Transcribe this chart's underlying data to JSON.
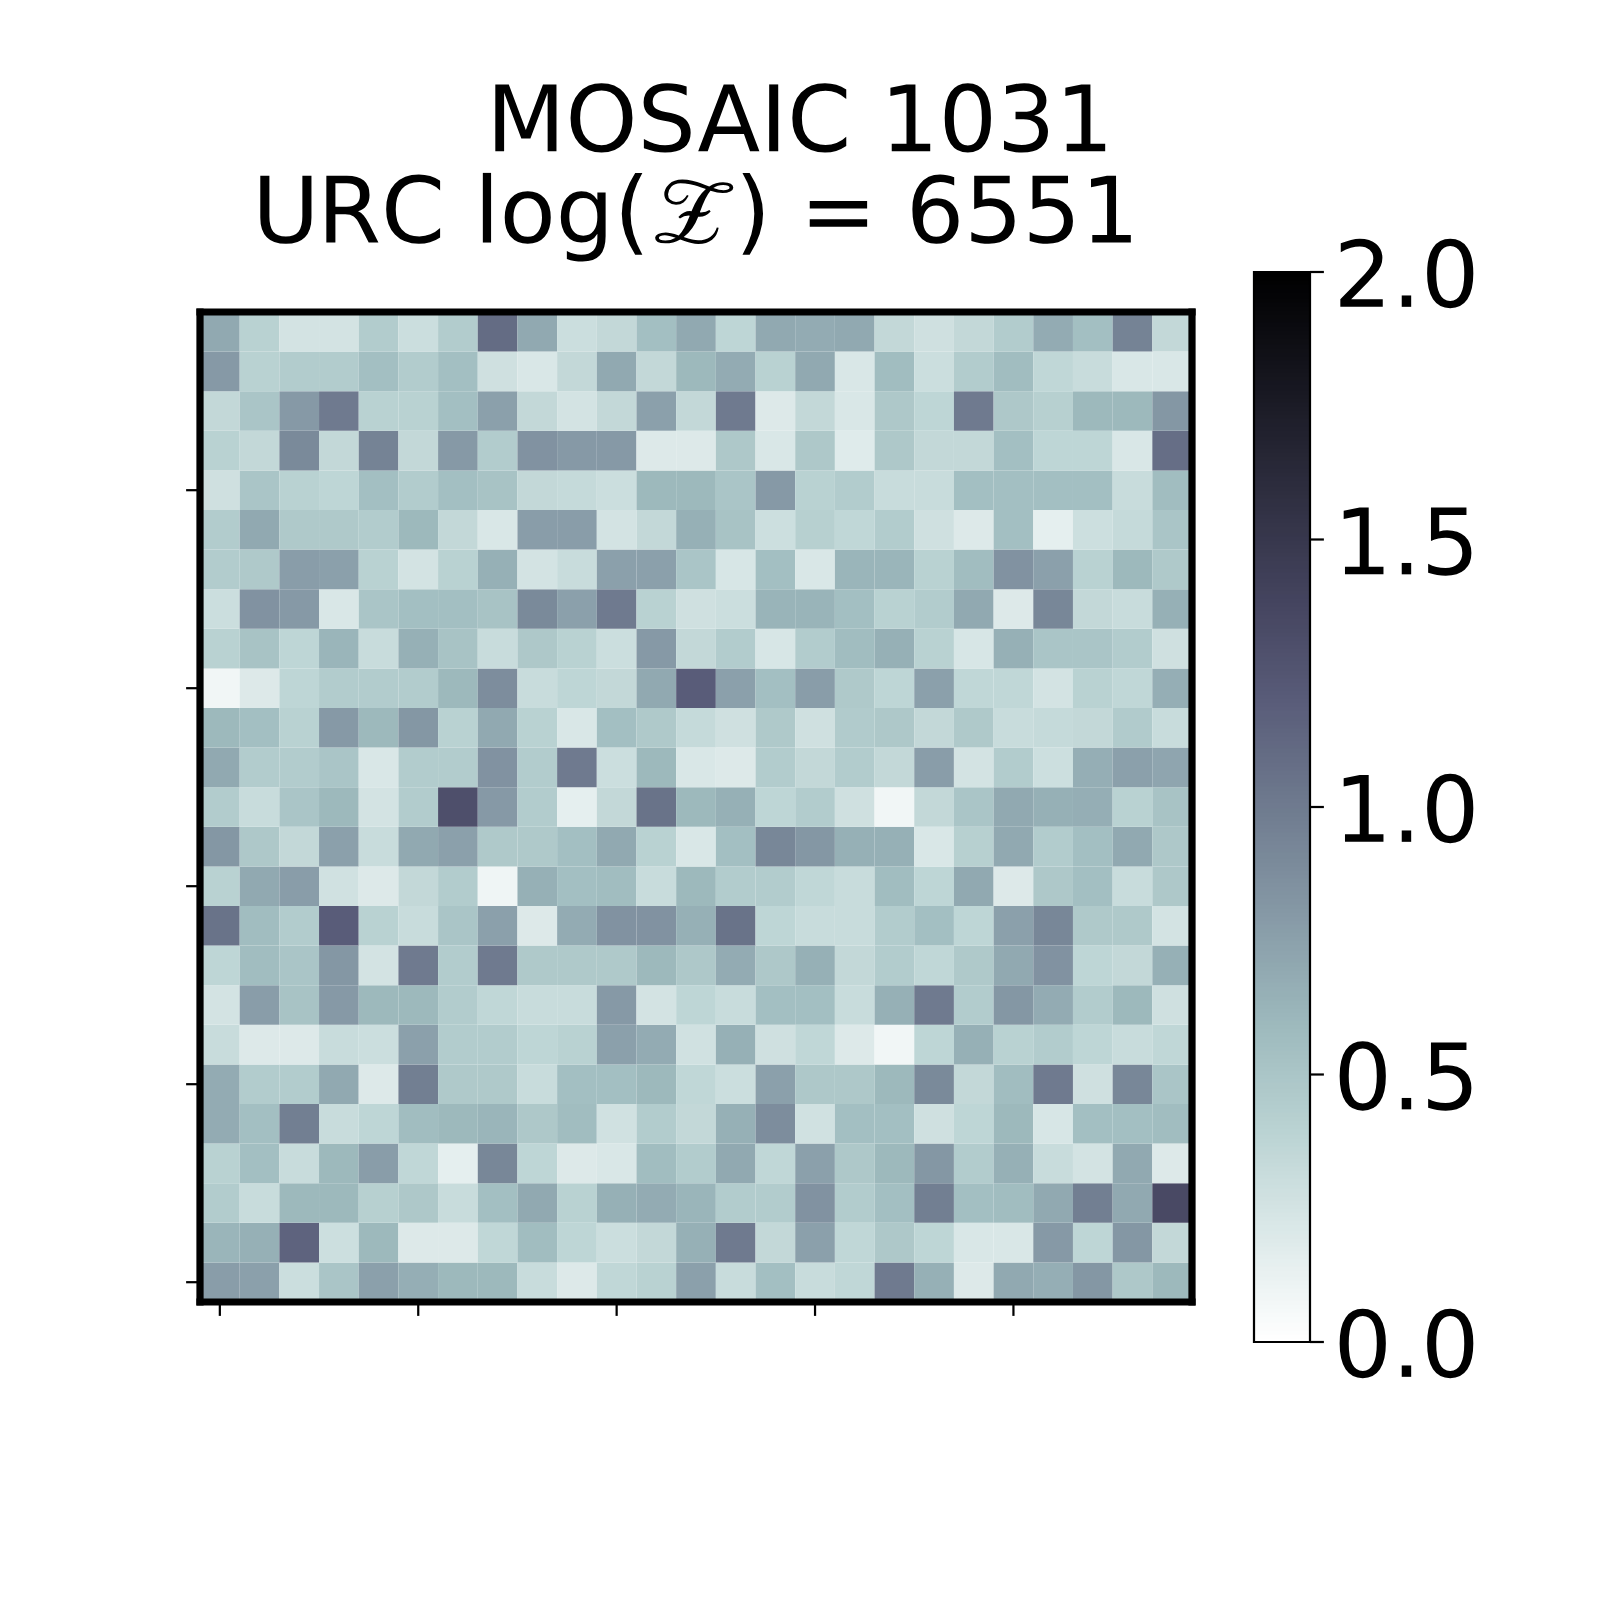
{
  "chart_data": {
    "type": "heatmap",
    "title": "MOSAIC 1031",
    "subtitle": "URC log(𝒵) = 6551",
    "categories": [
      null,
      null,
      null,
      null,
      null,
      null,
      null,
      null,
      null,
      null,
      null,
      null,
      null,
      null,
      null,
      null,
      null,
      null,
      null,
      null,
      null,
      null,
      null,
      null,
      null
    ],
    "y_categories": [
      null,
      null,
      null,
      null,
      null,
      null,
      null,
      null,
      null,
      null,
      null,
      null,
      null,
      null,
      null,
      null,
      null,
      null,
      null,
      null,
      null,
      null,
      null,
      null,
      null
    ],
    "cells": [
      [
        0.7,
        0.4,
        0.25,
        0.25,
        0.45,
        0.3,
        0.45,
        1.1,
        0.7,
        0.3,
        0.35,
        0.55,
        0.7,
        0.37,
        0.7,
        0.68,
        0.7,
        0.35,
        0.28,
        0.35,
        0.45,
        0.68,
        0.55,
        0.95,
        0.35
      ],
      [
        0.8,
        0.4,
        0.45,
        0.45,
        0.55,
        0.45,
        0.55,
        0.28,
        0.22,
        0.35,
        0.7,
        0.35,
        0.6,
        0.68,
        0.4,
        0.7,
        0.22,
        0.57,
        0.3,
        0.45,
        0.57,
        0.36,
        0.32,
        0.22,
        0.22
      ],
      [
        0.35,
        0.5,
        0.8,
        1.0,
        0.4,
        0.4,
        0.55,
        0.75,
        0.35,
        0.25,
        0.35,
        0.75,
        0.35,
        1.0,
        0.2,
        0.35,
        0.22,
        0.48,
        0.37,
        1.0,
        0.48,
        0.42,
        0.6,
        0.6,
        0.82
      ],
      [
        0.4,
        0.35,
        0.9,
        0.35,
        0.95,
        0.35,
        0.8,
        0.45,
        0.85,
        0.8,
        0.8,
        0.2,
        0.2,
        0.48,
        0.22,
        0.48,
        0.18,
        0.48,
        0.35,
        0.35,
        0.55,
        0.37,
        0.37,
        0.22,
        1.08
      ],
      [
        0.28,
        0.5,
        0.4,
        0.37,
        0.55,
        0.45,
        0.55,
        0.52,
        0.35,
        0.33,
        0.3,
        0.6,
        0.6,
        0.5,
        0.8,
        0.4,
        0.45,
        0.32,
        0.32,
        0.55,
        0.55,
        0.55,
        0.55,
        0.32,
        0.57
      ],
      [
        0.45,
        0.7,
        0.47,
        0.47,
        0.45,
        0.6,
        0.35,
        0.22,
        0.78,
        0.78,
        0.25,
        0.35,
        0.65,
        0.52,
        0.29,
        0.42,
        0.36,
        0.45,
        0.28,
        0.2,
        0.55,
        0.15,
        0.29,
        0.33,
        0.5
      ],
      [
        0.45,
        0.47,
        0.78,
        0.75,
        0.4,
        0.25,
        0.4,
        0.65,
        0.25,
        0.32,
        0.75,
        0.75,
        0.5,
        0.23,
        0.55,
        0.22,
        0.62,
        0.62,
        0.4,
        0.57,
        0.85,
        0.75,
        0.4,
        0.6,
        0.47
      ],
      [
        0.3,
        0.85,
        0.8,
        0.22,
        0.5,
        0.55,
        0.55,
        0.52,
        0.9,
        0.75,
        1.0,
        0.4,
        0.28,
        0.3,
        0.63,
        0.63,
        0.55,
        0.4,
        0.45,
        0.7,
        0.2,
        0.92,
        0.35,
        0.32,
        0.65
      ],
      [
        0.4,
        0.52,
        0.37,
        0.62,
        0.32,
        0.65,
        0.52,
        0.32,
        0.48,
        0.4,
        0.3,
        0.8,
        0.35,
        0.45,
        0.23,
        0.45,
        0.57,
        0.65,
        0.4,
        0.23,
        0.65,
        0.5,
        0.5,
        0.45,
        0.28
      ],
      [
        0.08,
        0.2,
        0.37,
        0.45,
        0.45,
        0.45,
        0.6,
        0.88,
        0.32,
        0.37,
        0.35,
        0.7,
        1.2,
        0.75,
        0.55,
        0.78,
        0.47,
        0.37,
        0.75,
        0.36,
        0.36,
        0.25,
        0.4,
        0.36,
        0.67
      ],
      [
        0.6,
        0.55,
        0.4,
        0.8,
        0.6,
        0.82,
        0.4,
        0.7,
        0.4,
        0.22,
        0.55,
        0.47,
        0.33,
        0.28,
        0.47,
        0.28,
        0.46,
        0.48,
        0.35,
        0.47,
        0.32,
        0.33,
        0.35,
        0.46,
        0.32
      ],
      [
        0.7,
        0.45,
        0.45,
        0.5,
        0.22,
        0.45,
        0.45,
        0.85,
        0.45,
        1.0,
        0.3,
        0.6,
        0.22,
        0.2,
        0.45,
        0.35,
        0.45,
        0.35,
        0.78,
        0.25,
        0.45,
        0.29,
        0.67,
        0.75,
        0.72
      ],
      [
        0.45,
        0.32,
        0.5,
        0.6,
        0.25,
        0.45,
        1.3,
        0.8,
        0.45,
        0.15,
        0.35,
        1.05,
        0.6,
        0.65,
        0.37,
        0.45,
        0.28,
        0.08,
        0.35,
        0.5,
        0.7,
        0.65,
        0.67,
        0.4,
        0.52
      ],
      [
        0.82,
        0.48,
        0.35,
        0.75,
        0.32,
        0.7,
        0.75,
        0.47,
        0.47,
        0.55,
        0.7,
        0.4,
        0.22,
        0.55,
        0.92,
        0.82,
        0.65,
        0.65,
        0.22,
        0.42,
        0.7,
        0.45,
        0.55,
        0.7,
        0.48
      ],
      [
        0.4,
        0.7,
        0.78,
        0.27,
        0.2,
        0.35,
        0.45,
        0.1,
        0.65,
        0.55,
        0.57,
        0.32,
        0.6,
        0.45,
        0.45,
        0.36,
        0.32,
        0.57,
        0.37,
        0.7,
        0.2,
        0.48,
        0.55,
        0.32,
        0.48
      ],
      [
        1.05,
        0.57,
        0.45,
        1.2,
        0.4,
        0.32,
        0.5,
        0.75,
        0.2,
        0.68,
        0.85,
        0.85,
        0.65,
        1.05,
        0.37,
        0.32,
        0.32,
        0.45,
        0.55,
        0.37,
        0.75,
        0.92,
        0.47,
        0.47,
        0.25
      ],
      [
        0.37,
        0.57,
        0.5,
        0.82,
        0.25,
        1.0,
        0.45,
        1.0,
        0.47,
        0.47,
        0.47,
        0.6,
        0.48,
        0.68,
        0.48,
        0.65,
        0.35,
        0.45,
        0.36,
        0.47,
        0.7,
        0.85,
        0.37,
        0.35,
        0.65
      ],
      [
        0.25,
        0.78,
        0.52,
        0.8,
        0.6,
        0.6,
        0.45,
        0.36,
        0.32,
        0.32,
        0.8,
        0.25,
        0.37,
        0.32,
        0.55,
        0.55,
        0.32,
        0.65,
        1.0,
        0.45,
        0.82,
        0.68,
        0.45,
        0.6,
        0.28
      ],
      [
        0.32,
        0.2,
        0.2,
        0.32,
        0.3,
        0.75,
        0.45,
        0.45,
        0.37,
        0.4,
        0.75,
        0.68,
        0.27,
        0.65,
        0.28,
        0.36,
        0.2,
        0.08,
        0.37,
        0.65,
        0.4,
        0.45,
        0.37,
        0.32,
        0.36
      ],
      [
        0.68,
        0.45,
        0.45,
        0.7,
        0.2,
        0.97,
        0.47,
        0.47,
        0.32,
        0.55,
        0.55,
        0.6,
        0.36,
        0.3,
        0.75,
        0.48,
        0.48,
        0.6,
        0.9,
        0.35,
        0.57,
        1.0,
        0.28,
        0.92,
        0.5
      ],
      [
        0.68,
        0.55,
        0.97,
        0.32,
        0.37,
        0.57,
        0.6,
        0.62,
        0.48,
        0.57,
        0.27,
        0.45,
        0.35,
        0.65,
        0.88,
        0.27,
        0.55,
        0.55,
        0.28,
        0.37,
        0.6,
        0.23,
        0.55,
        0.55,
        0.57
      ],
      [
        0.4,
        0.55,
        0.32,
        0.6,
        0.78,
        0.36,
        0.15,
        0.92,
        0.37,
        0.2,
        0.22,
        0.57,
        0.45,
        0.7,
        0.36,
        0.75,
        0.48,
        0.6,
        0.82,
        0.45,
        0.65,
        0.32,
        0.25,
        0.7,
        0.2
      ],
      [
        0.45,
        0.32,
        0.6,
        0.6,
        0.42,
        0.48,
        0.32,
        0.55,
        0.7,
        0.4,
        0.65,
        0.68,
        0.62,
        0.45,
        0.45,
        0.85,
        0.45,
        0.55,
        0.97,
        0.55,
        0.57,
        0.7,
        0.97,
        0.7,
        1.35
      ],
      [
        0.62,
        0.65,
        1.15,
        0.29,
        0.6,
        0.2,
        0.2,
        0.36,
        0.57,
        0.37,
        0.3,
        0.35,
        0.65,
        1.0,
        0.35,
        0.75,
        0.36,
        0.48,
        0.37,
        0.22,
        0.22,
        0.8,
        0.37,
        0.82,
        0.35
      ],
      [
        0.78,
        0.75,
        0.3,
        0.5,
        0.75,
        0.67,
        0.6,
        0.6,
        0.32,
        0.2,
        0.36,
        0.4,
        0.75,
        0.32,
        0.55,
        0.32,
        0.36,
        1.0,
        0.65,
        0.2,
        0.7,
        0.67,
        0.82,
        0.48,
        0.6
      ]
    ],
    "colors": [
      "#ffffff",
      "#dce9e9",
      "#b9d2d2",
      "#9cb8bc",
      "#8699a6",
      "#6f7b8f",
      "#595c79",
      "#43435d",
      "#2d2d3e",
      "#16161f",
      "#000000"
    ],
    "clim": [
      0,
      2
    ],
    "cticks": [
      {
        "value": 0,
        "label": "0.0"
      },
      0.5,
      {
        "value": 1,
        "label": "1.0"
      },
      1.5,
      {
        "value": 2,
        "label": "2.0"
      }
    ],
    "tick_labels": false
  }
}
